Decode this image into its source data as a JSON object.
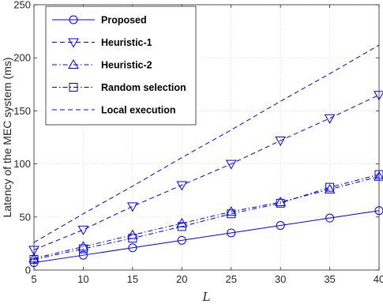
{
  "chart_data": {
    "type": "line",
    "x": [
      5,
      10,
      15,
      20,
      25,
      30,
      35,
      40
    ],
    "xlabel": "L",
    "ylabel": "Latency of the MEC system (ms)",
    "xlim": [
      5,
      40
    ],
    "ylim": [
      0,
      250
    ],
    "xticks": [
      "5",
      "10",
      "15",
      "20",
      "25",
      "30",
      "35",
      "40"
    ],
    "yticks": [
      "0",
      "50",
      "100",
      "150",
      "200",
      "250"
    ],
    "grid": true,
    "legend_position": "top-left",
    "color": "#0000ff",
    "series": [
      {
        "name": "Proposed",
        "marker": "circle",
        "dash": "solid",
        "values": [
          7,
          14,
          21,
          28,
          35,
          42,
          49,
          56
        ]
      },
      {
        "name": "Heuristic-1",
        "marker": "triangle-down",
        "dash": "dashed",
        "values": [
          19,
          38,
          60,
          80,
          100,
          122,
          143,
          165
        ]
      },
      {
        "name": "Heuristic-2",
        "marker": "triangle-up",
        "dash": "dashdot",
        "values": [
          11,
          22,
          33,
          44,
          55,
          64,
          76,
          88
        ]
      },
      {
        "name": "Random selection",
        "marker": "square",
        "dash": "dashdot",
        "values": [
          10,
          20,
          30,
          41,
          53,
          63,
          78,
          90
        ]
      },
      {
        "name": "Local execution",
        "marker": "none",
        "dash": "dashed",
        "values": [
          26,
          53,
          79,
          106,
          132,
          159,
          185,
          212
        ]
      }
    ]
  }
}
